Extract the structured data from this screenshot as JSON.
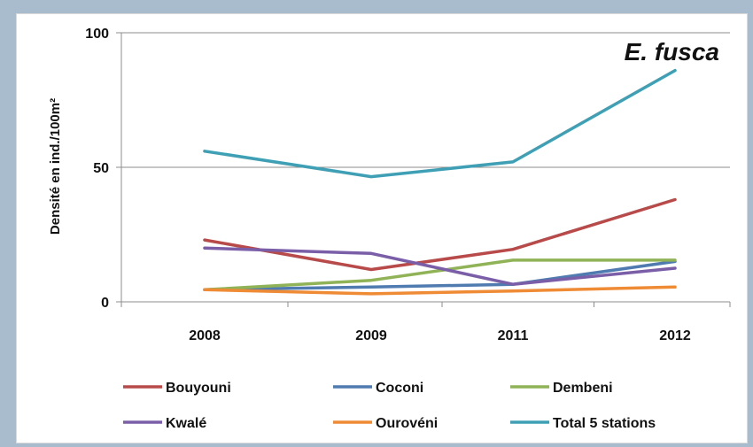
{
  "chart_data": {
    "type": "line",
    "title": "E. fusca",
    "ylabel": "Densité en ind./100m²",
    "xlabel": "",
    "categories": [
      "2008",
      "2009",
      "2011",
      "2012"
    ],
    "ylim": [
      0,
      100
    ],
    "yticks": [
      0,
      50,
      100
    ],
    "grid": "horizontal",
    "legend_position": "bottom",
    "series": [
      {
        "name": "Bouyouni",
        "color": "#b84a4a",
        "values": [
          23,
          12,
          19.5,
          38
        ]
      },
      {
        "name": "Coconi",
        "color": "#4f7bb0",
        "values": [
          4.5,
          5.5,
          6.5,
          15
        ]
      },
      {
        "name": "Dembeni",
        "color": "#8fb356",
        "values": [
          4.5,
          8,
          15.5,
          15.5
        ]
      },
      {
        "name": "Kwalé",
        "color": "#7b5ea8",
        "values": [
          20,
          18,
          6.5,
          12.5
        ]
      },
      {
        "name": "Ourovéni",
        "color": "#ef8a35",
        "values": [
          4.5,
          3,
          4,
          5.5
        ]
      },
      {
        "name": "Total 5 stations",
        "color": "#3fa0b5",
        "values": [
          56,
          46.5,
          52,
          86
        ]
      }
    ]
  }
}
